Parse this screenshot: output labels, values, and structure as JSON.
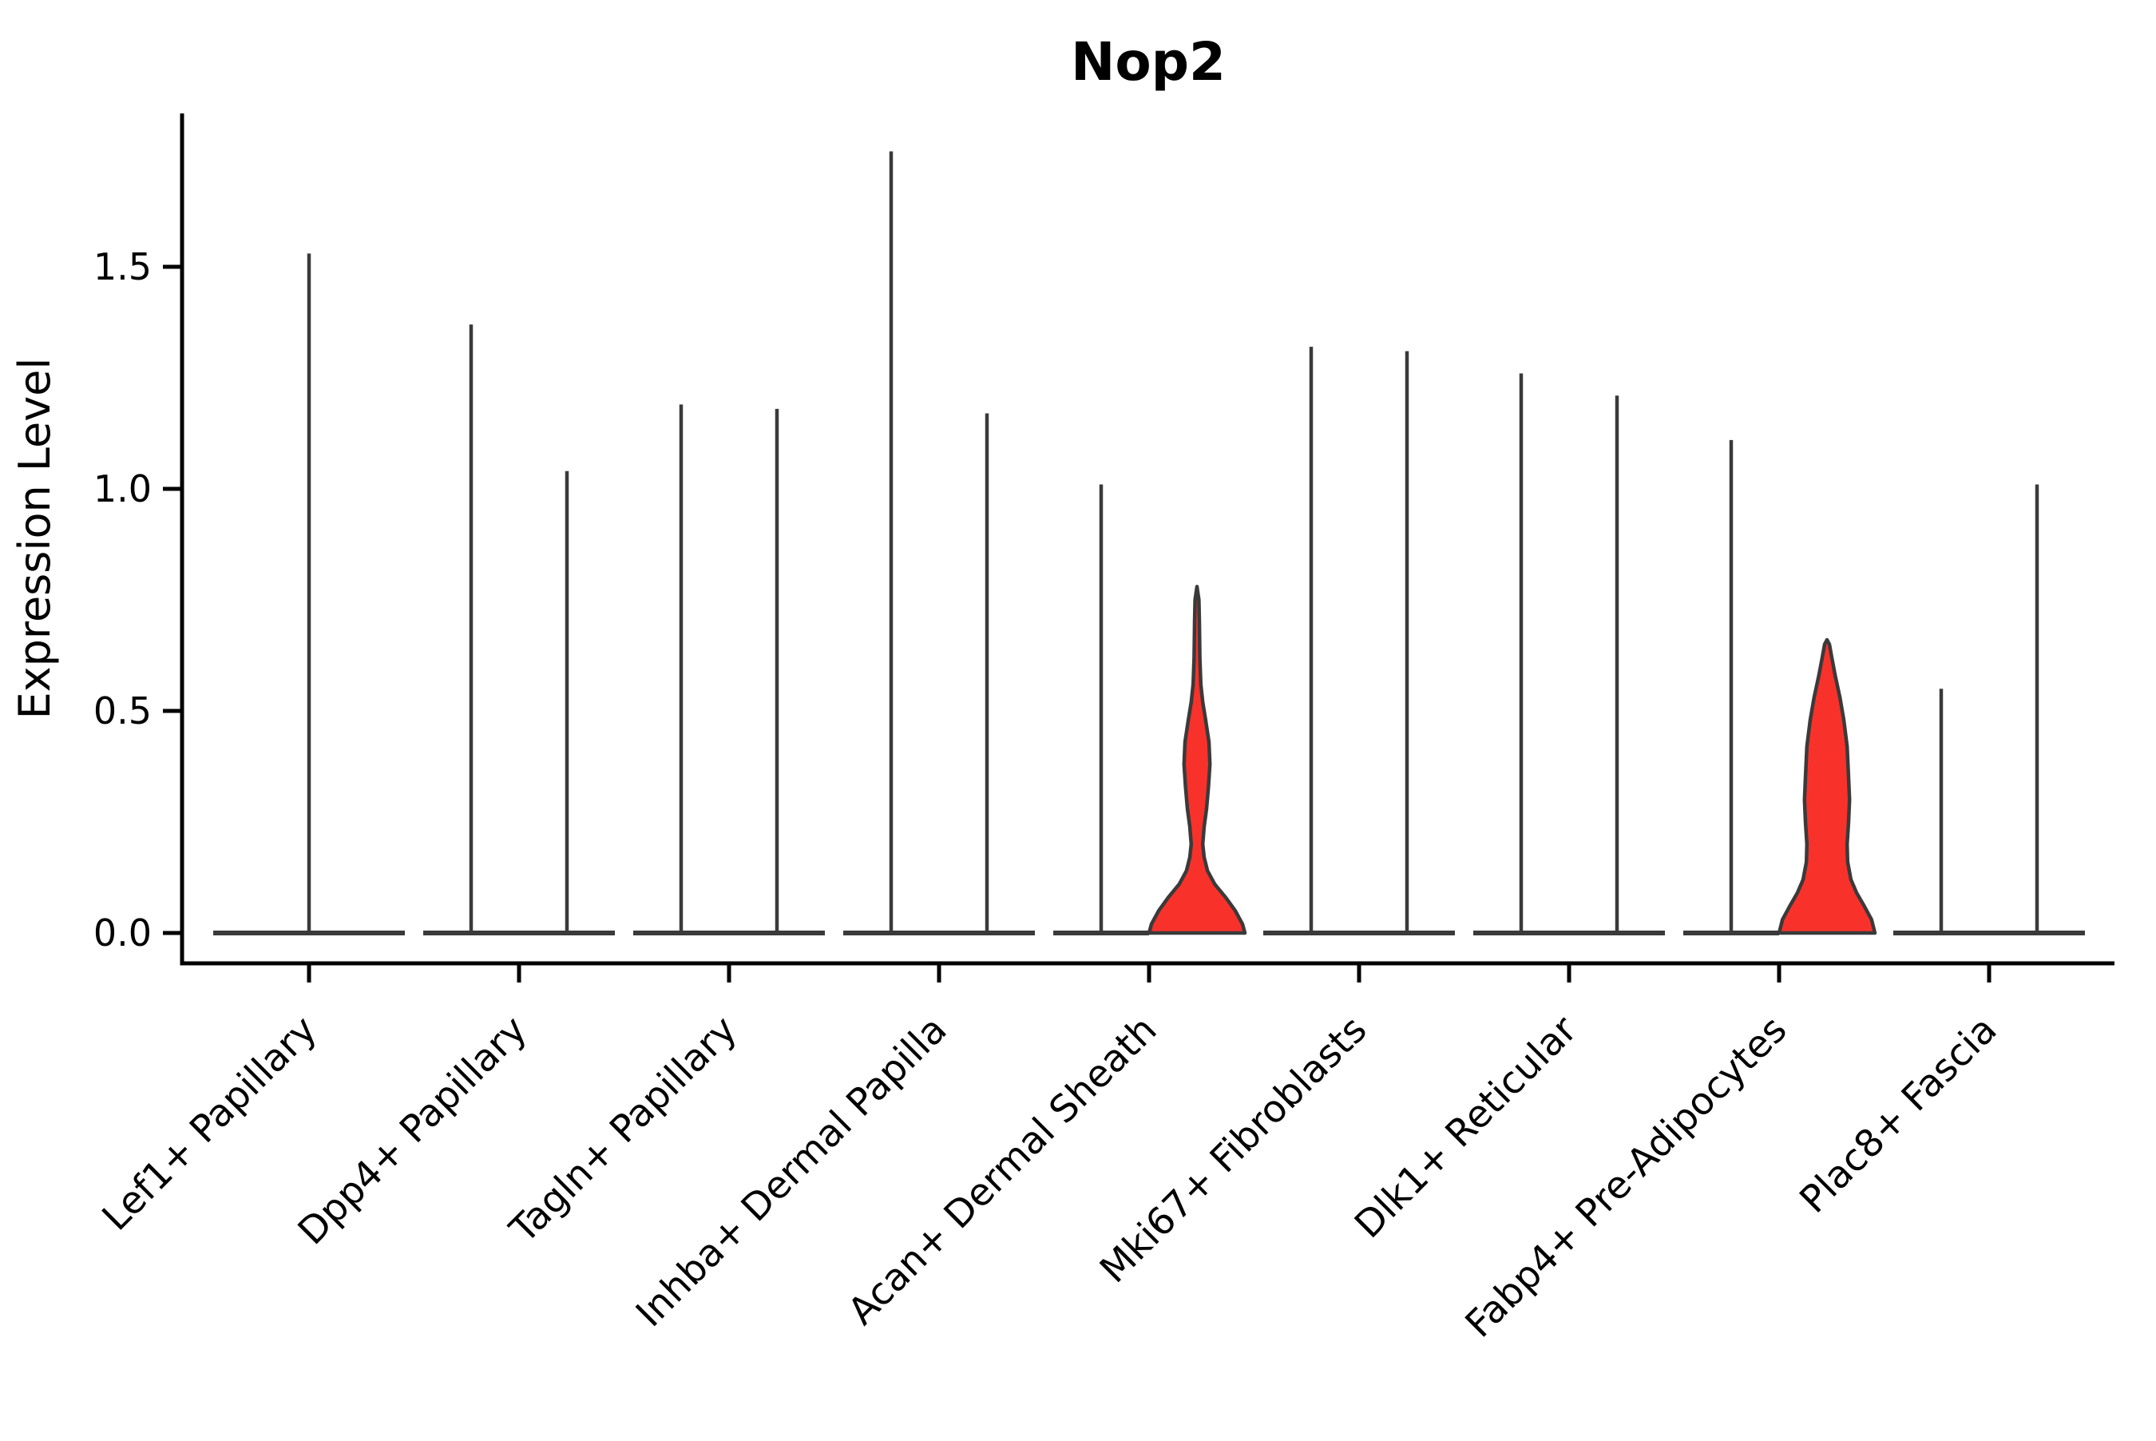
{
  "figure": {
    "title": "Nop2"
  },
  "colors": {
    "background": "#FFFFFF",
    "axis": "#000000",
    "text": "#000000",
    "violin_stroke": "#3A3A3A",
    "highlight_fill": "#F8322B"
  },
  "chart_data": {
    "type": "violin",
    "title": "Nop2",
    "xlabel": "",
    "ylabel": "Expression Level",
    "ylim": [
      -0.09,
      1.85
    ],
    "yticks": [
      {
        "value": 0.0,
        "label": "0.0"
      },
      {
        "value": 0.5,
        "label": "0.5"
      },
      {
        "value": 1.0,
        "label": "1.0"
      },
      {
        "value": 1.5,
        "label": "1.5"
      }
    ],
    "grid": false,
    "legend_position": "none",
    "categories": [
      "Lef1+ Papillary",
      "Dpp4+ Papillary",
      "Tagln+ Papillary",
      "Inhba+ Dermal Papilla",
      "Acan+ Dermal Sheath",
      "Mki67+ Fibroblasts",
      "Dlk1+ Reticular",
      "Fabp4+ Pre-Adipocytes",
      "Plac8+ Fascia"
    ],
    "violins": [
      {
        "category_index": 0,
        "category": "Lef1+ Papillary",
        "position": "center",
        "width": "full",
        "style": "spike",
        "max_expression": 1.53
      },
      {
        "category_index": 1,
        "category": "Dpp4+ Papillary",
        "position": "left",
        "width": "half",
        "style": "spike",
        "max_expression": 1.37
      },
      {
        "category_index": 1,
        "category": "Dpp4+ Papillary",
        "position": "right",
        "width": "half",
        "style": "spike",
        "max_expression": 1.04
      },
      {
        "category_index": 2,
        "category": "Tagln+ Papillary",
        "position": "left",
        "width": "half",
        "style": "spike",
        "max_expression": 1.19
      },
      {
        "category_index": 2,
        "category": "Tagln+ Papillary",
        "position": "right",
        "width": "half",
        "style": "spike",
        "max_expression": 1.18
      },
      {
        "category_index": 3,
        "category": "Inhba+ Dermal Papilla",
        "position": "left",
        "width": "half",
        "style": "spike",
        "max_expression": 1.76
      },
      {
        "category_index": 3,
        "category": "Inhba+ Dermal Papilla",
        "position": "right",
        "width": "half",
        "style": "spike",
        "max_expression": 1.17
      },
      {
        "category_index": 4,
        "category": "Acan+ Dermal Sheath",
        "position": "left",
        "width": "half",
        "style": "spike",
        "max_expression": 1.01
      },
      {
        "category_index": 4,
        "category": "Acan+ Dermal Sheath",
        "position": "right",
        "width": "half",
        "style": "filled",
        "max_expression": 0.78,
        "profile": [
          [
            0.0,
            1.0
          ],
          [
            0.02,
            0.95
          ],
          [
            0.05,
            0.8
          ],
          [
            0.08,
            0.6
          ],
          [
            0.11,
            0.37
          ],
          [
            0.14,
            0.22
          ],
          [
            0.17,
            0.15
          ],
          [
            0.2,
            0.12
          ],
          [
            0.24,
            0.15
          ],
          [
            0.28,
            0.2
          ],
          [
            0.33,
            0.24
          ],
          [
            0.38,
            0.27
          ],
          [
            0.43,
            0.25
          ],
          [
            0.48,
            0.18
          ],
          [
            0.52,
            0.12
          ],
          [
            0.56,
            0.08
          ],
          [
            0.62,
            0.06
          ],
          [
            0.7,
            0.05
          ],
          [
            0.75,
            0.04
          ],
          [
            0.78,
            0.0
          ]
        ]
      },
      {
        "category_index": 5,
        "category": "Mki67+ Fibroblasts",
        "position": "left",
        "width": "half",
        "style": "spike",
        "max_expression": 1.32
      },
      {
        "category_index": 5,
        "category": "Mki67+ Fibroblasts",
        "position": "right",
        "width": "half",
        "style": "spike",
        "max_expression": 1.31
      },
      {
        "category_index": 6,
        "category": "Dlk1+ Reticular",
        "position": "left",
        "width": "half",
        "style": "spike",
        "max_expression": 1.26
      },
      {
        "category_index": 6,
        "category": "Dlk1+ Reticular",
        "position": "right",
        "width": "half",
        "style": "spike",
        "max_expression": 1.21
      },
      {
        "category_index": 7,
        "category": "Fabp4+ Pre-Adipocytes",
        "position": "left",
        "width": "half",
        "style": "spike",
        "max_expression": 1.11
      },
      {
        "category_index": 7,
        "category": "Fabp4+ Pre-Adipocytes",
        "position": "right",
        "width": "half",
        "style": "filled",
        "max_expression": 0.66,
        "profile": [
          [
            0.0,
            1.0
          ],
          [
            0.03,
            0.93
          ],
          [
            0.06,
            0.78
          ],
          [
            0.09,
            0.62
          ],
          [
            0.12,
            0.5
          ],
          [
            0.16,
            0.43
          ],
          [
            0.2,
            0.42
          ],
          [
            0.25,
            0.45
          ],
          [
            0.3,
            0.47
          ],
          [
            0.35,
            0.45
          ],
          [
            0.42,
            0.42
          ],
          [
            0.48,
            0.35
          ],
          [
            0.53,
            0.27
          ],
          [
            0.58,
            0.17
          ],
          [
            0.62,
            0.1
          ],
          [
            0.65,
            0.05
          ],
          [
            0.66,
            0.0
          ]
        ]
      },
      {
        "category_index": 8,
        "category": "Plac8+ Fascia",
        "position": "left",
        "width": "half",
        "style": "spike",
        "max_expression": 0.55
      },
      {
        "category_index": 8,
        "category": "Plac8+ Fascia",
        "position": "right",
        "width": "half",
        "style": "spike",
        "max_expression": 1.01
      }
    ]
  }
}
